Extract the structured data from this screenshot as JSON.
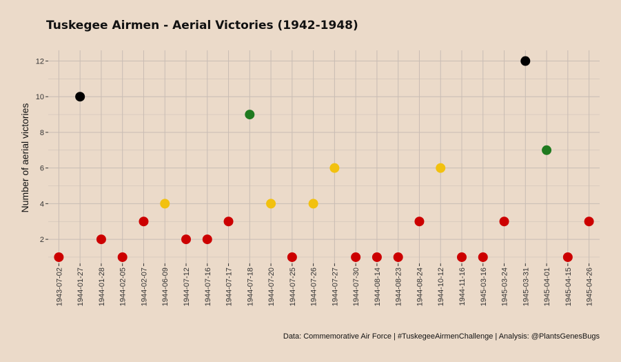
{
  "chart_data": {
    "type": "scatter",
    "title": "Tuskegee Airmen - Aerial Victories (1942-1948)",
    "xlabel": "",
    "ylabel": "Number of aerial victories",
    "caption": "Data: Commemorative Air Force | #TuskegeeAirmenChallenge | Analysis: @PlantsGenesBugs",
    "y_ticks": [
      2,
      4,
      6,
      8,
      10,
      12
    ],
    "ylim": [
      0.65,
      12.6
    ],
    "grid": true,
    "legend": "none",
    "x": [
      "1943-07-02",
      "1944-01-27",
      "1944-01-28",
      "1944-02-05",
      "1944-02-07",
      "1944-06-09",
      "1944-07-12",
      "1944-07-16",
      "1944-07-17",
      "1944-07-18",
      "1944-07-20",
      "1944-07-25",
      "1944-07-26",
      "1944-07-27",
      "1944-07-30",
      "1944-08-14",
      "1944-08-23",
      "1944-08-24",
      "1944-10-12",
      "1944-11-16",
      "1945-03-16",
      "1945-03-24",
      "1945-03-31",
      "1945-04-01",
      "1945-04-15",
      "1945-04-26"
    ],
    "y": [
      1,
      10,
      2,
      1,
      3,
      4,
      2,
      2,
      3,
      9,
      4,
      1,
      4,
      6,
      1,
      1,
      1,
      3,
      6,
      1,
      1,
      3,
      12,
      7,
      1,
      3
    ],
    "point_colors": [
      "#cc0000",
      "#000000",
      "#cc0000",
      "#cc0000",
      "#cc0000",
      "#f2c10f",
      "#cc0000",
      "#cc0000",
      "#cc0000",
      "#1f7a1f",
      "#f2c10f",
      "#cc0000",
      "#f2c10f",
      "#f2c10f",
      "#cc0000",
      "#cc0000",
      "#cc0000",
      "#cc0000",
      "#f2c10f",
      "#cc0000",
      "#cc0000",
      "#cc0000",
      "#000000",
      "#1f7a1f",
      "#cc0000",
      "#cc0000"
    ]
  },
  "colors": {
    "background": "#ebdac9",
    "grid": "#c8bcb4",
    "axis_text": "#333333"
  }
}
